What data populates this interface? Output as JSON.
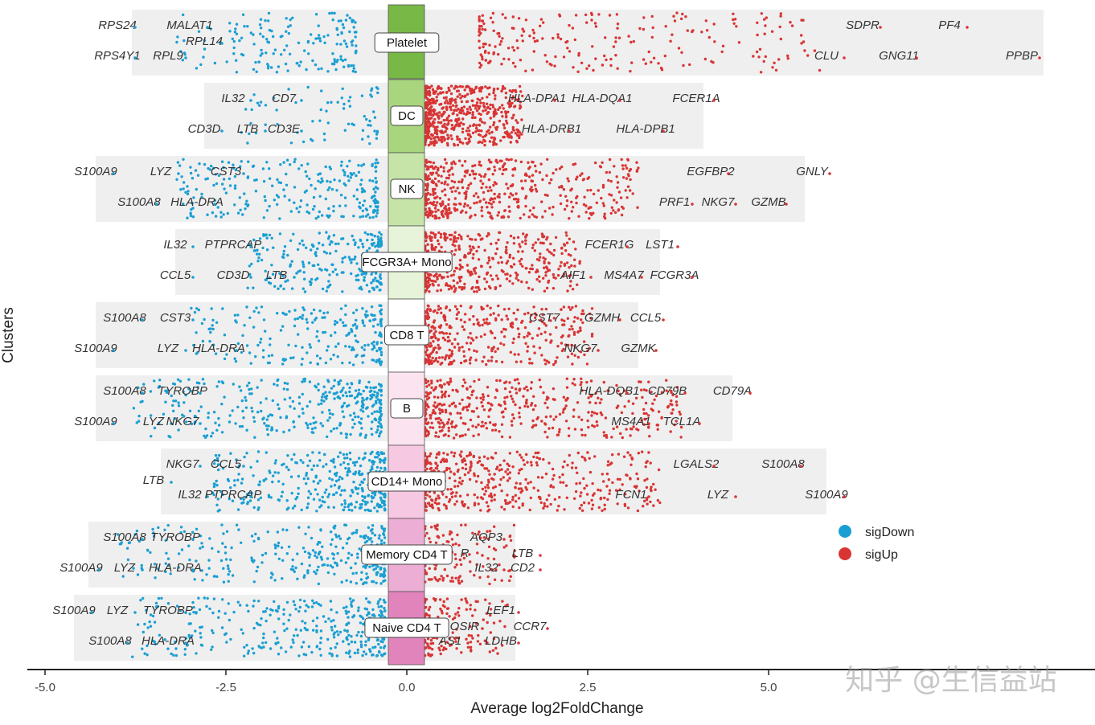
{
  "chart_data": {
    "type": "scatter",
    "xlabel": "Average log2FoldChange",
    "ylabel": "Clusters",
    "xlim": [
      -5.5,
      9.4
    ],
    "x_ticks": [
      "-5.0",
      "-2.5",
      "0.0",
      "2.5",
      "5.0"
    ],
    "x_tick_values": [
      -5,
      -2.5,
      0,
      2.5,
      5
    ],
    "legend": {
      "placement": "right",
      "entries": [
        {
          "name": "sigDown",
          "color": "#1a9fd3"
        },
        {
          "name": "sigUp",
          "color": "#d93434"
        }
      ]
    },
    "colors": {
      "sigDown": "#1a9fd3",
      "sigUp": "#d93434",
      "band": "#efefef"
    },
    "clusters": [
      {
        "name": "Platelet",
        "color": "#78b846",
        "band": [
          -3.8,
          8.8
        ],
        "down": {
          "range": [
            -3.2,
            -0.7
          ],
          "count": 170
        },
        "up": {
          "range": [
            1.0,
            5.8
          ],
          "count": 230
        },
        "genes": [
          {
            "label": "MALAT1",
            "x": -3.0,
            "row": "upper"
          },
          {
            "label": "RPS24",
            "x": -4.0,
            "row": "upper"
          },
          {
            "label": "RPL14",
            "x": -2.8,
            "row": "mid"
          },
          {
            "label": "RPS4Y1",
            "x": -4.0,
            "row": "lower"
          },
          {
            "label": "RPL9",
            "x": -3.3,
            "row": "lower"
          },
          {
            "label": "SDPR",
            "x": 6.3,
            "row": "upper"
          },
          {
            "label": "PF4",
            "x": 7.5,
            "row": "upper"
          },
          {
            "label": "CLU",
            "x": 5.8,
            "row": "lower"
          },
          {
            "label": "GNG11",
            "x": 6.8,
            "row": "lower"
          },
          {
            "label": "PPBP",
            "x": 8.5,
            "row": "lower"
          }
        ]
      },
      {
        "name": "DC",
        "color": "#a9d57e",
        "band": [
          -2.8,
          4.1
        ],
        "down": {
          "range": [
            -2.3,
            -0.4
          ],
          "count": 70
        },
        "up": {
          "range": [
            0.25,
            1.6
          ],
          "count": 600
        },
        "genes": [
          {
            "label": "IL32",
            "x": -2.4,
            "row": "upper"
          },
          {
            "label": "CD7",
            "x": -1.7,
            "row": "upper"
          },
          {
            "label": "CD3D",
            "x": -2.8,
            "row": "lower"
          },
          {
            "label": "LTB",
            "x": -2.2,
            "row": "lower"
          },
          {
            "label": "CD3E",
            "x": -1.7,
            "row": "lower"
          },
          {
            "label": "HLA-DPA1",
            "x": 1.8,
            "row": "upper"
          },
          {
            "label": "HLA-DQA1",
            "x": 2.7,
            "row": "upper"
          },
          {
            "label": "FCER1A",
            "x": 4.0,
            "row": "upper"
          },
          {
            "label": "HLA-DRB1",
            "x": 2.0,
            "row": "lower"
          },
          {
            "label": "HLA-DPB1",
            "x": 3.3,
            "row": "lower"
          }
        ]
      },
      {
        "name": "NK",
        "color": "#c6e4a8",
        "band": [
          -4.3,
          5.5
        ],
        "down": {
          "range": [
            -3.2,
            -0.4
          ],
          "count": 260
        },
        "up": {
          "range": [
            0.25,
            3.2
          ],
          "count": 500
        },
        "genes": [
          {
            "label": "S100A9",
            "x": -4.3,
            "row": "upper"
          },
          {
            "label": "LYZ",
            "x": -3.4,
            "row": "upper"
          },
          {
            "label": "CST3",
            "x": -2.5,
            "row": "upper"
          },
          {
            "label": "S100A8",
            "x": -3.7,
            "row": "lower"
          },
          {
            "label": "HLA-DRA",
            "x": -2.9,
            "row": "lower"
          },
          {
            "label": "EGFBP2",
            "x": 4.2,
            "row": "upper"
          },
          {
            "label": "GNLY",
            "x": 5.6,
            "row": "upper"
          },
          {
            "label": "PRF1",
            "x": 3.7,
            "row": "lower"
          },
          {
            "label": "NKG7",
            "x": 4.3,
            "row": "lower"
          },
          {
            "label": "GZMB",
            "x": 5.0,
            "row": "lower"
          }
        ]
      },
      {
        "name": "FCGR3A+ Mono",
        "color": "#e7f4da",
        "band": [
          -3.2,
          3.5
        ],
        "down": {
          "range": [
            -2.2,
            -0.35
          ],
          "count": 260
        },
        "up": {
          "range": [
            0.25,
            2.4
          ],
          "count": 450
        },
        "genes": [
          {
            "label": "IL32",
            "x": -3.2,
            "row": "upper"
          },
          {
            "label": "PTPRCAP",
            "x": -2.4,
            "row": "upper"
          },
          {
            "label": "CCL5",
            "x": -3.2,
            "row": "lower"
          },
          {
            "label": "CD3D",
            "x": -2.4,
            "row": "lower"
          },
          {
            "label": "LTB",
            "x": -1.8,
            "row": "lower"
          },
          {
            "label": "FCER1G",
            "x": 2.8,
            "row": "upper"
          },
          {
            "label": "LST1",
            "x": 3.5,
            "row": "upper"
          },
          {
            "label": "AIF1",
            "x": 2.3,
            "row": "lower"
          },
          {
            "label": "MS4A7",
            "x": 3.0,
            "row": "lower"
          },
          {
            "label": "FCGR3A",
            "x": 3.7,
            "row": "lower"
          }
        ]
      },
      {
        "name": "CD8 T",
        "color": "#ffffff",
        "band": [
          -4.3,
          3.2
        ],
        "down": {
          "range": [
            -3.0,
            -0.35
          ],
          "count": 230
        },
        "up": {
          "range": [
            0.25,
            2.6
          ],
          "count": 380
        },
        "genes": [
          {
            "label": "S100A8",
            "x": -3.9,
            "row": "upper"
          },
          {
            "label": "CST3",
            "x": -3.2,
            "row": "upper"
          },
          {
            "label": "S100A9",
            "x": -4.3,
            "row": "lower"
          },
          {
            "label": "LYZ",
            "x": -3.3,
            "row": "lower"
          },
          {
            "label": "HLA-DRA",
            "x": -2.6,
            "row": "lower"
          },
          {
            "label": "CST7",
            "x": 1.9,
            "row": "upper"
          },
          {
            "label": "GZMH",
            "x": 2.7,
            "row": "upper"
          },
          {
            "label": "CCL5",
            "x": 3.3,
            "row": "upper"
          },
          {
            "label": "NKG7",
            "x": 2.4,
            "row": "lower"
          },
          {
            "label": "GZMK",
            "x": 3.2,
            "row": "lower"
          }
        ]
      },
      {
        "name": "B",
        "color": "#fbe3ef",
        "band": [
          -4.3,
          4.5
        ],
        "down": {
          "range": [
            -3.8,
            -0.35
          ],
          "count": 360
        },
        "up": {
          "range": [
            0.25,
            3.8
          ],
          "count": 450
        },
        "genes": [
          {
            "label": "S100A8",
            "x": -3.9,
            "row": "upper"
          },
          {
            "label": "TYROBP",
            "x": -3.1,
            "row": "upper"
          },
          {
            "label": "S100A9",
            "x": -4.3,
            "row": "lower"
          },
          {
            "label": "LYZ",
            "x": -3.5,
            "row": "lower"
          },
          {
            "label": "NKG7",
            "x": -3.1,
            "row": "lower"
          },
          {
            "label": "HLA-DQB1",
            "x": 2.8,
            "row": "upper"
          },
          {
            "label": "CD79B",
            "x": 3.6,
            "row": "upper"
          },
          {
            "label": "CD79A",
            "x": 4.5,
            "row": "upper"
          },
          {
            "label": "MS4A1",
            "x": 3.1,
            "row": "lower"
          },
          {
            "label": "TCL1A",
            "x": 3.8,
            "row": "lower"
          }
        ]
      },
      {
        "name": "CD14+ Mono",
        "color": "#f6c8e1",
        "band": [
          -3.4,
          5.8
        ],
        "down": {
          "range": [
            -2.7,
            -0.3
          ],
          "count": 370
        },
        "up": {
          "range": [
            0.25,
            3.5
          ],
          "count": 460
        },
        "genes": [
          {
            "label": "NKG7",
            "x": -3.1,
            "row": "upper"
          },
          {
            "label": "CCL5",
            "x": -2.5,
            "row": "upper"
          },
          {
            "label": "LTB",
            "x": -3.5,
            "row": "mid"
          },
          {
            "label": "IL32",
            "x": -3.0,
            "row": "lower"
          },
          {
            "label": "PTPRCAP",
            "x": -2.4,
            "row": "lower"
          },
          {
            "label": "LGALS2",
            "x": 4.0,
            "row": "upper"
          },
          {
            "label": "S100A8",
            "x": 5.2,
            "row": "upper"
          },
          {
            "label": "FCN1",
            "x": 3.1,
            "row": "lower"
          },
          {
            "label": "LYZ",
            "x": 4.3,
            "row": "lower"
          },
          {
            "label": "S100A9",
            "x": 5.8,
            "row": "lower"
          }
        ]
      },
      {
        "name": "Memory CD4 T",
        "color": "#ecaed5",
        "band": [
          -4.4,
          1.5
        ],
        "down": {
          "range": [
            -4.0,
            -0.3
          ],
          "count": 320
        },
        "up": {
          "range": [
            0.25,
            1.5
          ],
          "count": 140
        },
        "genes": [
          {
            "label": "S100A8",
            "x": -3.9,
            "row": "upper"
          },
          {
            "label": "TYROBP",
            "x": -3.2,
            "row": "upper"
          },
          {
            "label": "S100A9",
            "x": -4.5,
            "row": "lower"
          },
          {
            "label": "LYZ",
            "x": -3.9,
            "row": "lower"
          },
          {
            "label": "HLA-DRA",
            "x": -3.2,
            "row": "lower"
          },
          {
            "label": "AQP3",
            "x": 1.1,
            "row": "upper"
          },
          {
            "label": "LTB",
            "x": 1.6,
            "row": "mid"
          },
          {
            "label": "R",
            "x": 0.8,
            "row": "mid"
          },
          {
            "label": "CD2",
            "x": 1.6,
            "row": "lower"
          },
          {
            "label": "IL32",
            "x": 1.1,
            "row": "lower"
          }
        ]
      },
      {
        "name": "Naive CD4 T",
        "color": "#e184bb",
        "band": [
          -4.6,
          1.5
        ],
        "down": {
          "range": [
            -3.8,
            -0.3
          ],
          "count": 370
        },
        "up": {
          "range": [
            0.25,
            1.4
          ],
          "count": 150
        },
        "genes": [
          {
            "label": "S100A9",
            "x": -4.6,
            "row": "upper"
          },
          {
            "label": "LYZ",
            "x": -4.0,
            "row": "upper"
          },
          {
            "label": "TYROBP",
            "x": -3.3,
            "row": "upper"
          },
          {
            "label": "S100A8",
            "x": -4.1,
            "row": "lower"
          },
          {
            "label": "HLA-DRA",
            "x": -3.3,
            "row": "lower"
          },
          {
            "label": "LEF1",
            "x": 1.3,
            "row": "upper"
          },
          {
            "label": "CCR7",
            "x": 1.7,
            "row": "mid"
          },
          {
            "label": "OSIR",
            "x": 0.8,
            "row": "mid"
          },
          {
            "label": "LDHB",
            "x": 1.3,
            "row": "lower"
          },
          {
            "label": "AS1",
            "x": 0.6,
            "row": "lower"
          }
        ]
      }
    ]
  },
  "watermark": "知乎 @生信益站"
}
